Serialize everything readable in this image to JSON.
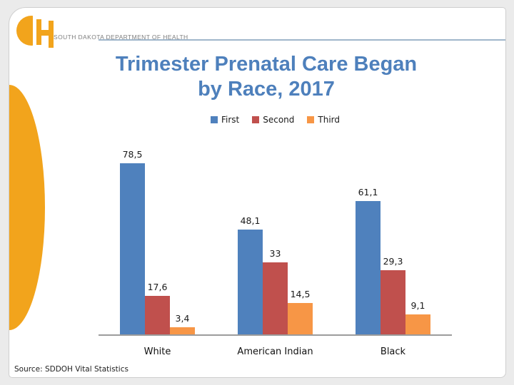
{
  "header": {
    "org_name": "SOUTH DAKOTA DEPARTMENT OF HEALTH",
    "logo": "sddoh-h-logo"
  },
  "title": {
    "line1": "Trimester Prenatal Care Began",
    "line2": "by Race, 2017"
  },
  "source": {
    "text": "Source: SDDOH Vital Statistics"
  },
  "colors": {
    "title_blue": "#4E80BC",
    "accent_orange": "#F2A41C",
    "header_rule": "#9FB6CB",
    "axis_gray": "#9C9C9C",
    "bar_first": "#4F81BD",
    "bar_second": "#C0504D",
    "bar_third": "#F79646"
  },
  "chart_data": {
    "type": "bar",
    "title": "Trimester Prenatal Care Began by Race, 2017",
    "categories": [
      "White",
      "American Indian",
      "Black"
    ],
    "series": [
      {
        "name": "First",
        "color": "#4F81BD",
        "values": [
          78.5,
          48.1,
          61.1
        ],
        "labels": [
          "78,5",
          "48,1",
          "61,1"
        ]
      },
      {
        "name": "Second",
        "color": "#C0504D",
        "values": [
          17.6,
          33.0,
          29.3
        ],
        "labels": [
          "17,6",
          "33",
          "29,3"
        ]
      },
      {
        "name": "Third",
        "color": "#F79646",
        "values": [
          3.4,
          14.5,
          9.1
        ],
        "labels": [
          "3,4",
          "14,5",
          "9,1"
        ]
      }
    ],
    "xlabel": "",
    "ylabel": "",
    "ylim": [
      0,
      85
    ],
    "grid": false,
    "legend_position": "top",
    "data_labels": true,
    "decimal_separator": ","
  }
}
